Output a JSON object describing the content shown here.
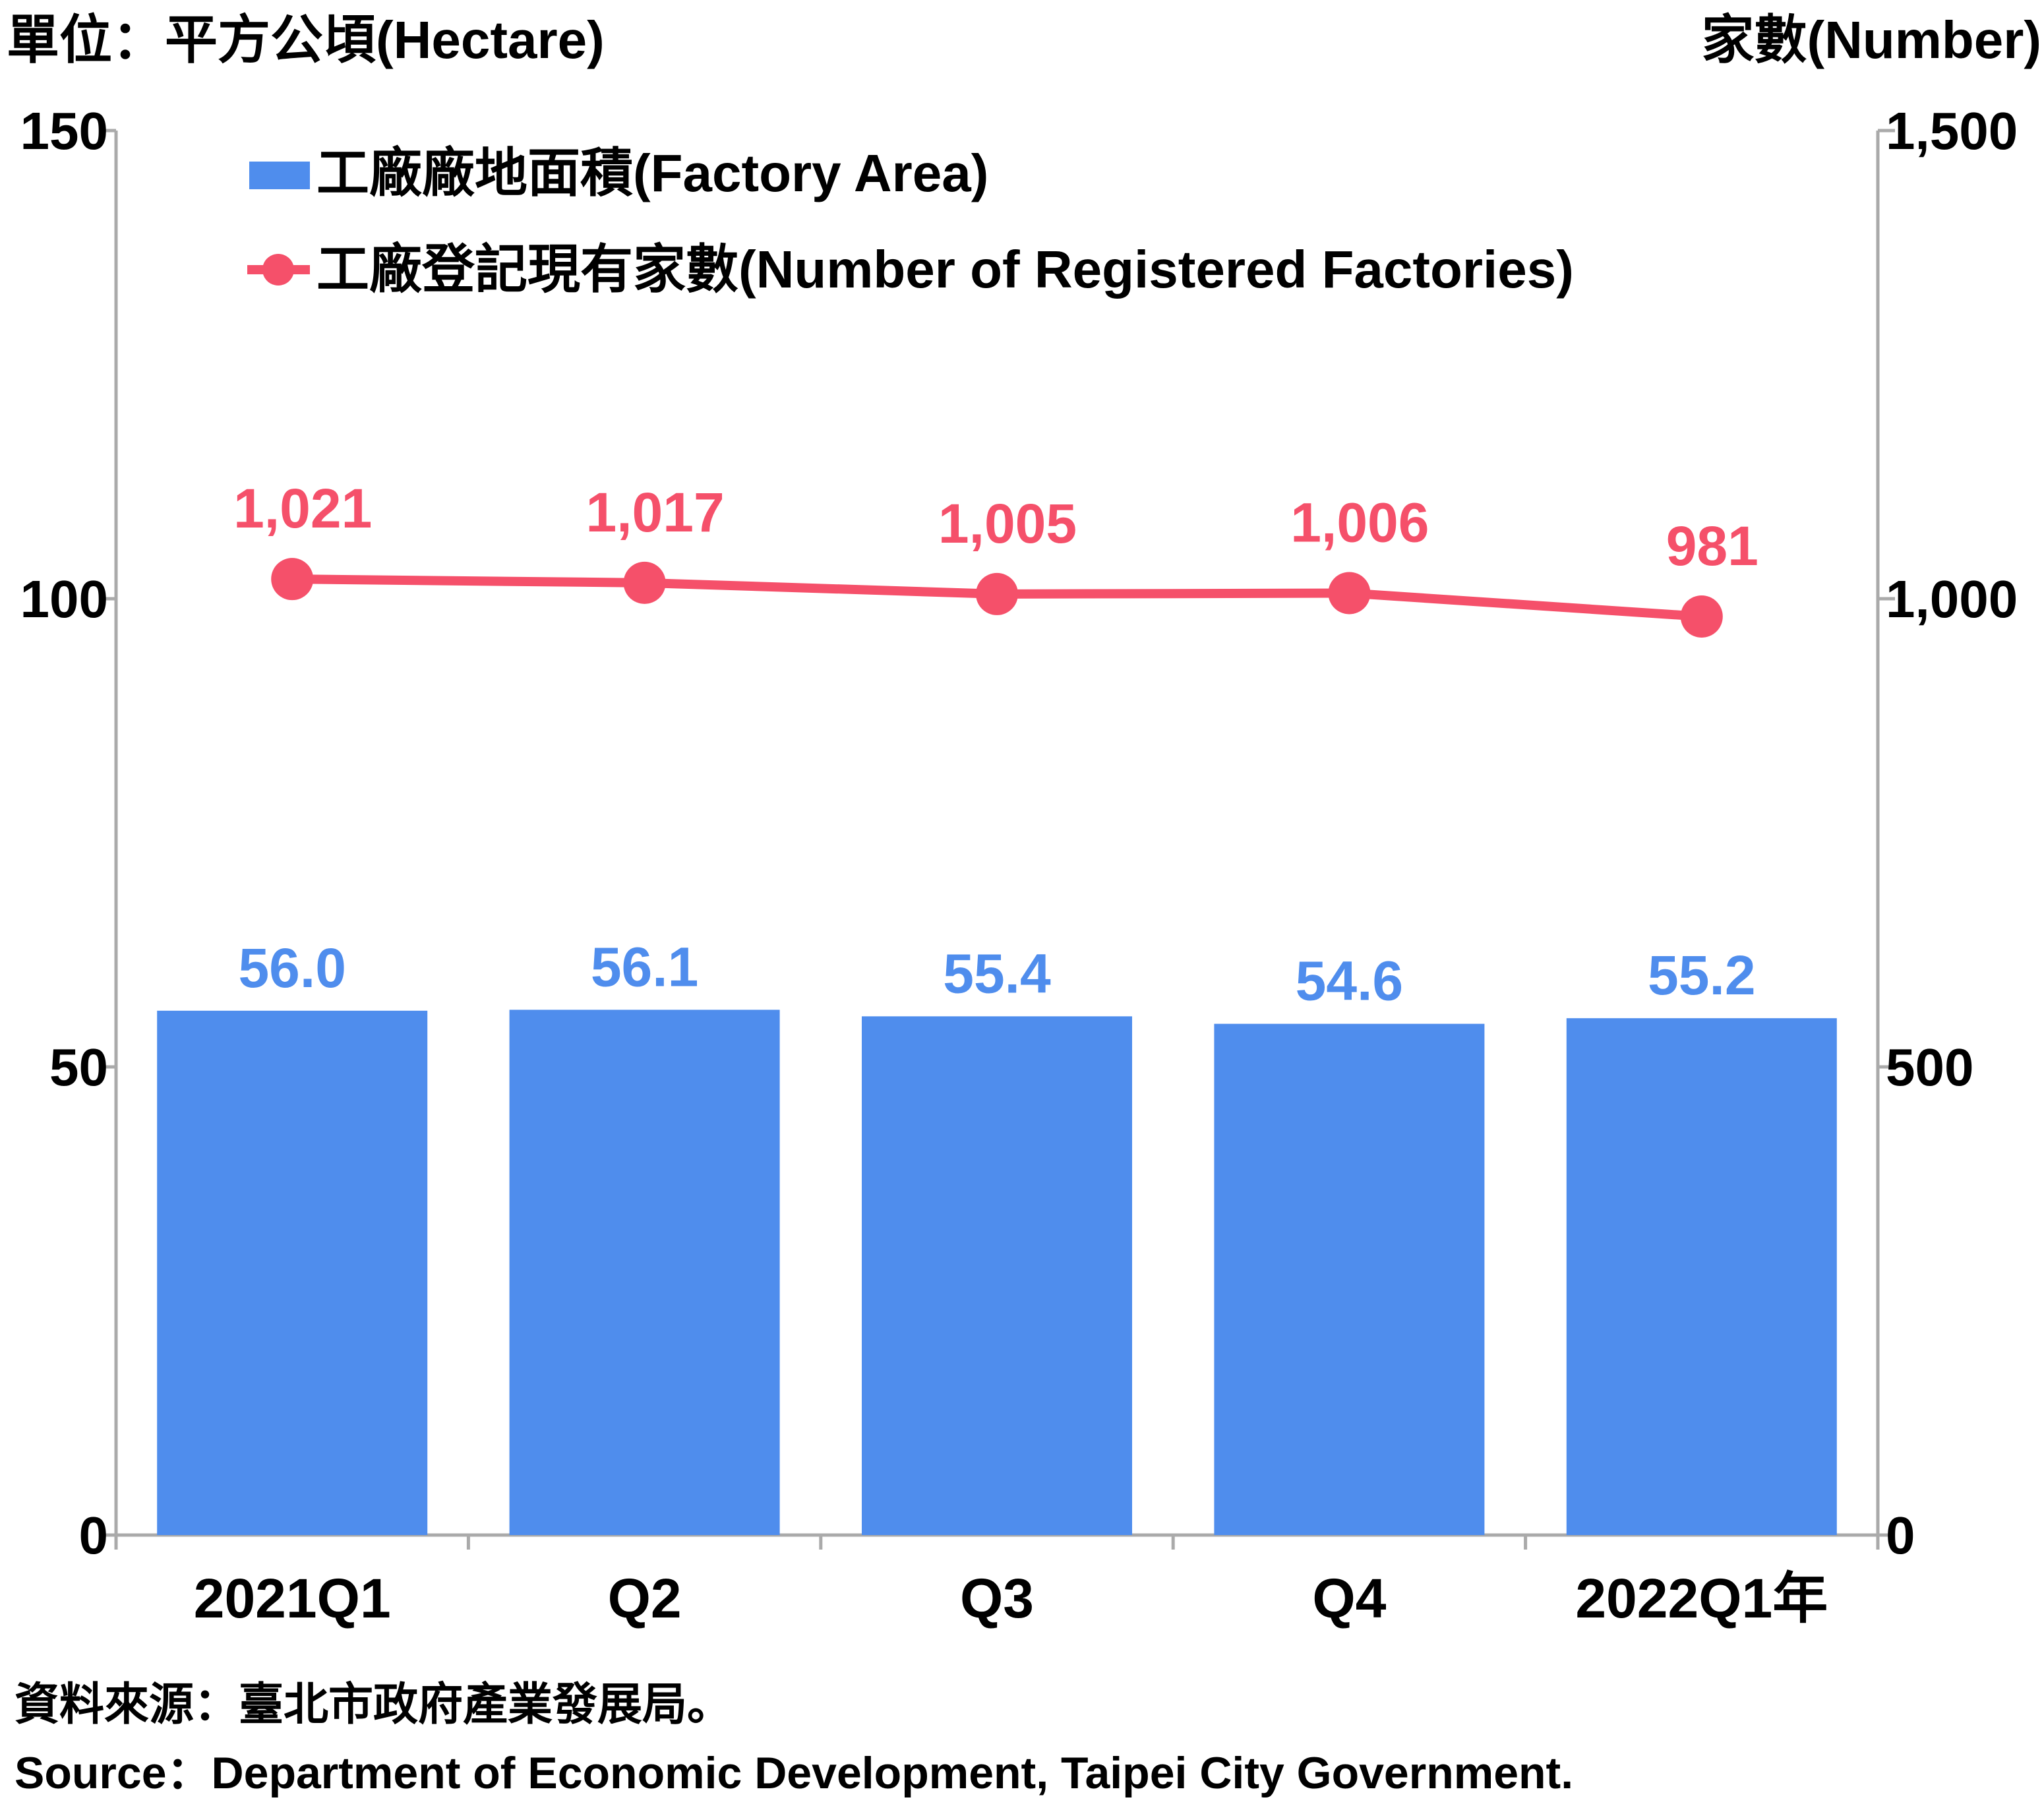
{
  "chart_data": {
    "type": "bar+line",
    "left_unit_label": "單位：平方公頃(Hectare)",
    "right_unit_label": "家數(Number)",
    "categories": [
      "2021Q1",
      "Q2",
      "Q3",
      "Q4",
      "2022Q1年"
    ],
    "bar_series": {
      "name": "工廠廠地面積(Factory Area)",
      "axis": "left",
      "values": [
        56.0,
        56.1,
        55.4,
        54.6,
        55.2
      ],
      "labels": [
        "56.0",
        "56.1",
        "55.4",
        "54.6",
        "55.2"
      ],
      "color": "#4f8ded"
    },
    "line_series": {
      "name": "工廠登記現有家數(Number of Registered Factories)",
      "axis": "right",
      "values": [
        1021,
        1017,
        1005,
        1006,
        981
      ],
      "labels": [
        "1,021",
        "1,017",
        "1,005",
        "1,006",
        "981"
      ],
      "color": "#f5506a"
    },
    "left_axis": {
      "ylim": [
        0,
        150
      ],
      "ticks": [
        0,
        50,
        100,
        150
      ],
      "tick_labels": [
        "0",
        "50",
        "100",
        "150"
      ]
    },
    "right_axis": {
      "ylim": [
        0,
        1500
      ],
      "ticks": [
        0,
        500,
        1000,
        1500
      ],
      "tick_labels": [
        "0",
        "500",
        "1,000",
        "1,500"
      ]
    },
    "grid": false,
    "legend_position": "top-left",
    "axis_color": "#aaaaaa"
  },
  "footer": {
    "source_zh": "資料來源：臺北市政府產業發展局。",
    "source_en": "Source：Department of Economic Development, Taipei City Government."
  }
}
